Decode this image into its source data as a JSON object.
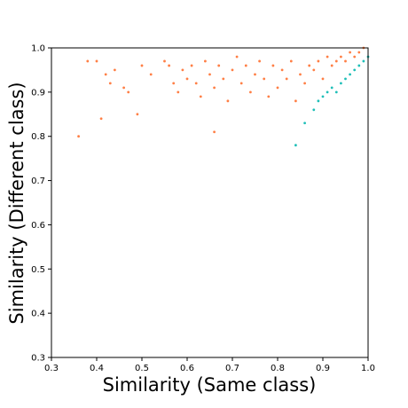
{
  "chart_data": {
    "type": "scatter",
    "xlabel": "Similarity (Same class)",
    "ylabel": "Similarity (Different class)",
    "xlim": [
      0.3,
      1.0
    ],
    "ylim": [
      0.3,
      1.0
    ],
    "x_ticks": [
      "0.3",
      "0.4",
      "0.5",
      "0.6",
      "0.7",
      "0.8",
      "0.9",
      "1.0"
    ],
    "y_ticks": [
      "0.3",
      "0.4",
      "0.5",
      "0.6",
      "0.7",
      "0.8",
      "0.9",
      "1.0"
    ],
    "grid": false,
    "series": [
      {
        "color": "#ff7f45",
        "description": "orange points, concentrated near the top-right corner",
        "points": [
          [
            0.36,
            0.8
          ],
          [
            0.38,
            0.97
          ],
          [
            0.4,
            0.97
          ],
          [
            0.41,
            0.84
          ],
          [
            0.42,
            0.94
          ],
          [
            0.43,
            0.92
          ],
          [
            0.44,
            0.95
          ],
          [
            0.46,
            0.91
          ],
          [
            0.47,
            0.9
          ],
          [
            0.49,
            0.85
          ],
          [
            0.5,
            0.96
          ],
          [
            0.52,
            0.94
          ],
          [
            0.55,
            0.97
          ],
          [
            0.56,
            0.96
          ],
          [
            0.57,
            0.92
          ],
          [
            0.58,
            0.9
          ],
          [
            0.59,
            0.95
          ],
          [
            0.6,
            0.93
          ],
          [
            0.61,
            0.96
          ],
          [
            0.62,
            0.92
          ],
          [
            0.63,
            0.89
          ],
          [
            0.64,
            0.97
          ],
          [
            0.65,
            0.94
          ],
          [
            0.66,
            0.81
          ],
          [
            0.66,
            0.91
          ],
          [
            0.67,
            0.96
          ],
          [
            0.68,
            0.93
          ],
          [
            0.69,
            0.88
          ],
          [
            0.7,
            0.95
          ],
          [
            0.71,
            0.98
          ],
          [
            0.72,
            0.92
          ],
          [
            0.73,
            0.96
          ],
          [
            0.74,
            0.9
          ],
          [
            0.75,
            0.94
          ],
          [
            0.76,
            0.97
          ],
          [
            0.77,
            0.93
          ],
          [
            0.78,
            0.89
          ],
          [
            0.79,
            0.96
          ],
          [
            0.8,
            0.91
          ],
          [
            0.81,
            0.95
          ],
          [
            0.82,
            0.93
          ],
          [
            0.83,
            0.97
          ],
          [
            0.84,
            0.88
          ],
          [
            0.85,
            0.94
          ],
          [
            0.86,
            0.92
          ],
          [
            0.87,
            0.96
          ],
          [
            0.88,
            0.95
          ],
          [
            0.89,
            0.97
          ],
          [
            0.9,
            0.93
          ],
          [
            0.91,
            0.98
          ],
          [
            0.92,
            0.96
          ],
          [
            0.93,
            0.97
          ],
          [
            0.94,
            0.98
          ],
          [
            0.95,
            0.97
          ],
          [
            0.96,
            0.99
          ],
          [
            0.97,
            0.98
          ],
          [
            0.98,
            0.99
          ],
          [
            0.99,
            1.0
          ]
        ]
      },
      {
        "color": "#1fbfb8",
        "description": "teal points below the diagonal near the top-right corner",
        "points": [
          [
            0.84,
            0.78
          ],
          [
            0.86,
            0.83
          ],
          [
            0.88,
            0.86
          ],
          [
            0.89,
            0.88
          ],
          [
            0.9,
            0.89
          ],
          [
            0.91,
            0.9
          ],
          [
            0.92,
            0.91
          ],
          [
            0.93,
            0.9
          ],
          [
            0.94,
            0.92
          ],
          [
            0.95,
            0.93
          ],
          [
            0.96,
            0.94
          ],
          [
            0.97,
            0.95
          ],
          [
            0.98,
            0.96
          ],
          [
            0.99,
            0.97
          ],
          [
            1.0,
            0.98
          ]
        ]
      }
    ]
  }
}
